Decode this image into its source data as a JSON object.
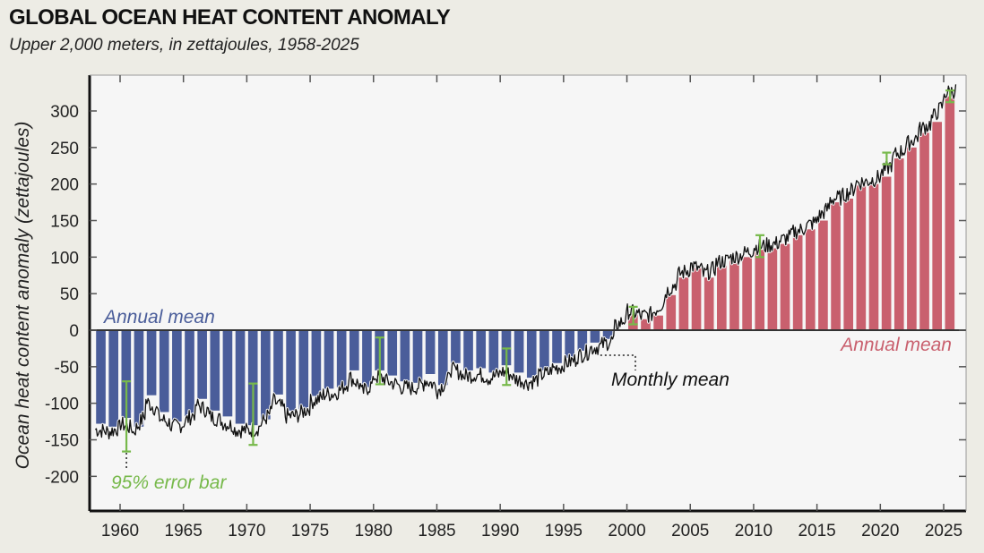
{
  "chart_data": {
    "type": "bar",
    "title": "GLOBAL OCEAN HEAT CONTENT ANOMALY",
    "subtitle": "Upper 2,000 meters, in zettajoules, 1958-2025",
    "xlabel": "",
    "ylabel": "Ocean heat content  anomaly (zettajoules)",
    "xlim": [
      1957.7,
      2026.5
    ],
    "ylim": [
      -245,
      350
    ],
    "x_ticks": [
      1960,
      1965,
      1970,
      1975,
      1980,
      1985,
      1990,
      1995,
      2000,
      2005,
      2010,
      2015,
      2020,
      2025
    ],
    "y_ticks": [
      300,
      250,
      200,
      150,
      100,
      50,
      0,
      -50,
      -100,
      -150,
      -200
    ],
    "grid": false,
    "colors": {
      "negative": "#4a5d9a",
      "positive": "#c9606e",
      "monthly": "#111111",
      "error": "#77b94b",
      "plot_bg": "#f6f6f6"
    },
    "series": [
      {
        "name": "Annual mean",
        "x": [
          1958,
          1959,
          1960,
          1961,
          1962,
          1963,
          1964,
          1965,
          1966,
          1967,
          1968,
          1969,
          1970,
          1971,
          1972,
          1973,
          1974,
          1975,
          1976,
          1977,
          1978,
          1979,
          1980,
          1981,
          1982,
          1983,
          1984,
          1985,
          1986,
          1987,
          1988,
          1989,
          1990,
          1991,
          1992,
          1993,
          1994,
          1995,
          1996,
          1997,
          1998,
          1999,
          2000,
          2001,
          2002,
          2003,
          2004,
          2005,
          2006,
          2007,
          2008,
          2009,
          2010,
          2011,
          2012,
          2013,
          2014,
          2015,
          2016,
          2017,
          2018,
          2019,
          2020,
          2021,
          2022,
          2023,
          2024,
          2025
        ],
        "values": [
          -128,
          -132,
          -120,
          -132,
          -89,
          -112,
          -125,
          -118,
          -94,
          -110,
          -118,
          -128,
          -130,
          -122,
          -88,
          -110,
          -108,
          -90,
          -80,
          -78,
          -55,
          -78,
          -55,
          -62,
          -70,
          -72,
          -60,
          -75,
          -45,
          -55,
          -52,
          -58,
          -48,
          -58,
          -65,
          -55,
          -45,
          -38,
          -28,
          -17,
          -12,
          0,
          22,
          15,
          20,
          48,
          72,
          85,
          72,
          88,
          95,
          100,
          110,
          112,
          118,
          130,
          138,
          150,
          175,
          180,
          198,
          200,
          210,
          235,
          250,
          270,
          285,
          320
        ]
      },
      {
        "name": "Monthly mean",
        "type": "line",
        "note": "monthly values fluctuate around annual means"
      },
      {
        "name": "95% error bar",
        "x": [
          1960.5,
          1970.5,
          1980.5,
          1990.5,
          2000.5,
          2010.5,
          2020.5,
          2025.5
        ],
        "centers": [
          -118,
          -115,
          -42,
          -50,
          20,
          115,
          235,
          320
        ],
        "half_width": [
          48,
          42,
          32,
          25,
          12,
          15,
          8,
          8
        ]
      }
    ],
    "annotations": [
      {
        "text": "Annual mean",
        "color": "#4a5d9a",
        "position": "top-left below zero"
      },
      {
        "text": "Annual mean",
        "color": "#c9606e",
        "position": "right below zero"
      },
      {
        "text": "Monthly mean",
        "color": "#111111",
        "position": "center below zero"
      },
      {
        "text": "95% error bar",
        "color": "#77b94b",
        "position": "bottom-left"
      }
    ]
  }
}
